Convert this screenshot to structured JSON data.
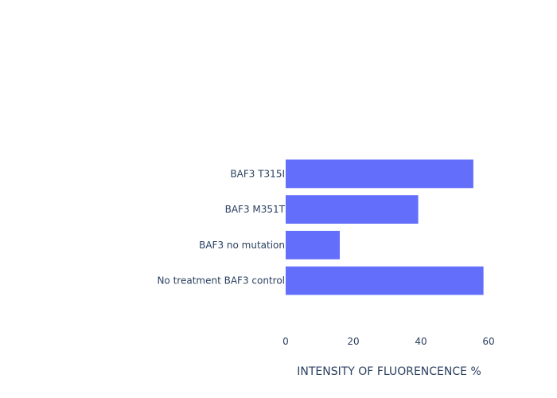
{
  "chart_data": {
    "type": "bar",
    "orientation": "horizontal",
    "categories": [
      "No treatment BAF3 control",
      "BAF3 no mutation",
      "BAF3 M351T",
      "BAF3 T315I"
    ],
    "values": [
      58.5,
      16,
      39.2,
      55.5
    ],
    "xlabel": "INTENSITY OF FLUORENCENCE %",
    "ylabel": "",
    "xlim": [
      0,
      60
    ],
    "xticks": [
      0,
      20,
      40,
      60
    ],
    "grid": false,
    "bar_color": "#636efa",
    "text_color": "#2a3f5f"
  }
}
